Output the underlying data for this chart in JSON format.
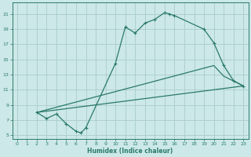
{
  "bg_color": "#cce8e8",
  "grid_color": "#aacccc",
  "line_color": "#2a7a6a",
  "xlabel": "Humidex (Indice chaleur)",
  "xlim": [
    -0.5,
    23.5
  ],
  "ylim": [
    4.5,
    22.5
  ],
  "xticks": [
    0,
    1,
    2,
    3,
    4,
    5,
    6,
    7,
    8,
    9,
    10,
    11,
    12,
    13,
    14,
    15,
    16,
    17,
    18,
    19,
    20,
    21,
    22,
    23
  ],
  "yticks": [
    5,
    7,
    9,
    11,
    13,
    15,
    17,
    19,
    21
  ],
  "curve_x": [
    2,
    3,
    4,
    5,
    6,
    6.5,
    7,
    10,
    11,
    12,
    13,
    14,
    15,
    15.5,
    16,
    19,
    20,
    21,
    22,
    23
  ],
  "curve_y": [
    8,
    7.2,
    7.8,
    6.5,
    5.5,
    5.3,
    6.0,
    14.5,
    19.3,
    18.5,
    19.8,
    20.3,
    21.2,
    21.0,
    20.8,
    19.0,
    17.2,
    14.2,
    12.2,
    11.5
  ],
  "line2_x": [
    2,
    20,
    21,
    23
  ],
  "line2_y": [
    8,
    14.2,
    12.8,
    11.5
  ],
  "line3_x": [
    2,
    23
  ],
  "line3_y": [
    8,
    11.5
  ]
}
